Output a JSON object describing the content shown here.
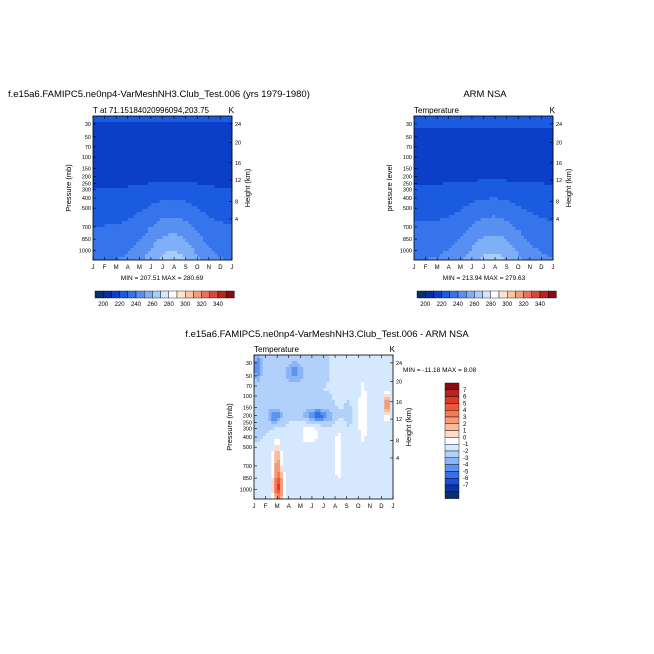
{
  "figure": {
    "page_title": "f.e15a6.FAMIPC5.ne0np4-VarMeshNH3.Club_Test.006 (yrs 1979-1980)",
    "diff_title": "f.e15a6.FAMIPC5.ne0np4-VarMeshNH3.Club_Test.006 - ARM NSA"
  },
  "chart_data": [
    {
      "id": "model",
      "type": "heatmap",
      "title": "",
      "left_string": "T at 71.15184020996094,203.75",
      "right_string": "K",
      "ylabel": "Pressure (mb)",
      "ylabel_right": "Height (km)",
      "pressure_ticks": [
        30,
        50,
        70,
        100,
        150,
        200,
        250,
        300,
        400,
        500,
        700,
        850,
        1000
      ],
      "height_ticks": [
        4,
        8,
        12,
        16,
        20,
        24
      ],
      "months": [
        "J",
        "F",
        "M",
        "A",
        "M",
        "J",
        "J",
        "A",
        "S",
        "O",
        "N",
        "D",
        "J"
      ],
      "minmax_text": "MIN = 207.51   MAX = 280.69",
      "field": "model"
    },
    {
      "id": "obs",
      "type": "heatmap",
      "title": "ARM NSA",
      "left_string": "Temperature",
      "right_string": "K",
      "ylabel": "pressure level",
      "ylabel_right": "Height (km)",
      "pressure_ticks": [
        30,
        50,
        70,
        100,
        150,
        200,
        250,
        300,
        400,
        500,
        700,
        850,
        1000
      ],
      "height_ticks": [
        4,
        8,
        12,
        16,
        20,
        24
      ],
      "months": [
        "J",
        "F",
        "M",
        "A",
        "M",
        "J",
        "J",
        "A",
        "S",
        "O",
        "N",
        "D",
        "J"
      ],
      "minmax_text": "MIN = 213.94   MAX = 279.63",
      "field": "obs"
    },
    {
      "id": "diff",
      "type": "heatmap",
      "title": "",
      "left_string": "Temperature",
      "right_string": "K",
      "ylabel": "Pressure (mb)",
      "ylabel_right": "Height (km)",
      "pressure_ticks": [
        30,
        50,
        70,
        100,
        150,
        200,
        250,
        300,
        400,
        500,
        700,
        850,
        1000
      ],
      "height_ticks": [
        4,
        8,
        12,
        16,
        20,
        24
      ],
      "months": [
        "J",
        "F",
        "M",
        "A",
        "M",
        "J",
        "J",
        "A",
        "S",
        "O",
        "N",
        "D",
        "J"
      ],
      "minmax_text": "MIN = -11.18   MAX =   8.08",
      "field": "diff"
    }
  ],
  "colorbars": {
    "abs": {
      "orientation": "horizontal",
      "labels": [
        "200",
        "220",
        "240",
        "260",
        "280",
        "300",
        "320",
        "340"
      ],
      "colors": [
        "#08306b",
        "#0a2d9e",
        "#0c3fc8",
        "#1a5be0",
        "#3674ec",
        "#5890f2",
        "#7fb0f7",
        "#a9cdfb",
        "#d3e6fd",
        "#ffffff",
        "#fde4d0",
        "#fbc3a1",
        "#f59f78",
        "#e8735a",
        "#d54a3a",
        "#b92420",
        "#8a0c12"
      ]
    },
    "diff": {
      "orientation": "vertical",
      "labels": [
        "7",
        "6",
        "5",
        "4",
        "3",
        "2",
        "1",
        "0",
        "-1",
        "-2",
        "-3",
        "-4",
        "-5",
        "-6",
        "-7"
      ],
      "colors": [
        "#8a0c12",
        "#b92420",
        "#d83a26",
        "#ea5a3a",
        "#f37a55",
        "#f79a78",
        "#fbbc9e",
        "#fddccb",
        "#ffffff",
        "#d6e8fd",
        "#b1d1fb",
        "#8ab6f7",
        "#5e93f0",
        "#3670e6",
        "#1b50d4",
        "#0d34a8",
        "#08306b"
      ]
    }
  }
}
